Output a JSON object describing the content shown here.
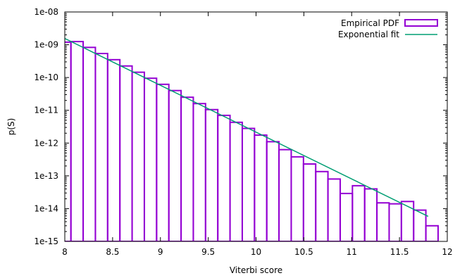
{
  "chart_data": {
    "type": "bar",
    "title": "",
    "xlabel": "Viterbi score",
    "ylabel": "p(S)",
    "x_range": [
      8,
      12
    ],
    "y_range": [
      1e-15,
      1e-08
    ],
    "y_scale": "log",
    "grid": false,
    "legend_position": "top-right",
    "x_ticks": [
      "8",
      "8.5",
      "9",
      "9.5",
      "10",
      "10.5",
      "11",
      "11.5",
      "12"
    ],
    "y_ticks": [
      "1e-15",
      "1e-14",
      "1e-13",
      "1e-12",
      "1e-11",
      "1e-10",
      "1e-09",
      "1e-08"
    ],
    "bin_width": 0.128,
    "bin_centers": [
      8.0,
      8.128,
      8.256,
      8.384,
      8.512,
      8.64,
      8.768,
      8.896,
      9.024,
      9.152,
      9.28,
      9.408,
      9.536,
      9.664,
      9.792,
      9.92,
      10.048,
      10.176,
      10.304,
      10.432,
      10.56,
      10.688,
      10.816,
      10.944,
      11.072,
      11.2,
      11.328,
      11.456,
      11.584,
      11.712,
      11.84
    ],
    "series": [
      {
        "name": "Empirical PDF",
        "kind": "histogram",
        "color": "#9400d3",
        "values": [
          1.2e-09,
          1.25e-09,
          8.3e-10,
          5.4e-10,
          3.5e-10,
          2.25e-10,
          1.45e-10,
          9.5e-11,
          6.2e-11,
          4e-11,
          2.5e-11,
          1.6e-11,
          1.05e-11,
          7e-12,
          4.3e-12,
          2.8e-12,
          1.75e-12,
          1.1e-12,
          6.3e-13,
          3.8e-13,
          2.3e-13,
          1.35e-13,
          8e-14,
          2.9e-14,
          5e-14,
          4e-14,
          1.5e-14,
          1.4e-14,
          1.65e-14,
          9e-15,
          3e-15
        ]
      },
      {
        "name": "Exponential fit",
        "kind": "line",
        "color": "#009e73",
        "x": [
          8.0,
          11.8
        ],
        "y": [
          1.55e-09,
          5.8e-15
        ]
      }
    ]
  }
}
